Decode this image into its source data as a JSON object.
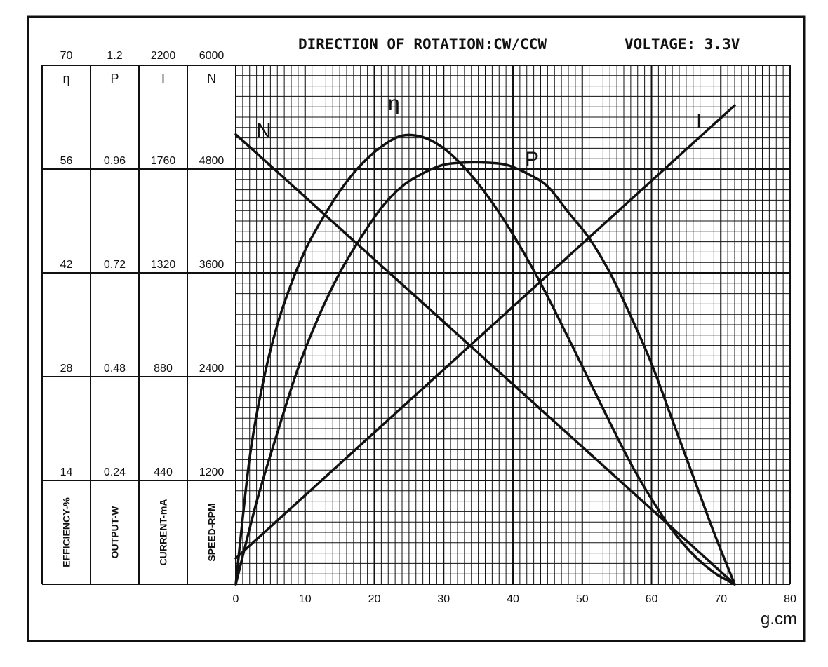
{
  "header": {
    "rotation_text": "DIRECTION OF ROTATION:CW/CCW",
    "voltage_text": "VOLTAGE: 3.3V"
  },
  "chart_data": {
    "type": "line",
    "x_unit": "g.cm",
    "xlim": [
      0,
      80
    ],
    "x_ticks": [
      "0",
      "10",
      "20",
      "30",
      "40",
      "50",
      "60",
      "70",
      "80"
    ],
    "x_tick_values": [
      0,
      10,
      20,
      30,
      40,
      50,
      60,
      70,
      80
    ],
    "axes": [
      {
        "symbol": "η",
        "name": "EFFICIENCY-%",
        "max": 70,
        "ticks": [
          "70",
          "56",
          "42",
          "28",
          "14"
        ]
      },
      {
        "symbol": "P",
        "name": "OUTPUT-W",
        "max": 1.2,
        "ticks": [
          "1.2",
          "0.96",
          "0.72",
          "0.48",
          "0.24"
        ]
      },
      {
        "symbol": "I",
        "name": "CURRENT-mA",
        "max": 2200,
        "ticks": [
          "2200",
          "1760",
          "1320",
          "880",
          "440"
        ]
      },
      {
        "symbol": "N",
        "name": "SPEED-RPM",
        "max": 6000,
        "ticks": [
          "6000",
          "4800",
          "3600",
          "2400",
          "1200"
        ]
      }
    ],
    "series": [
      {
        "name": "N",
        "axis": 3,
        "x": [
          0,
          72
        ],
        "y": [
          5200,
          0
        ]
      },
      {
        "name": "I",
        "axis": 2,
        "x": [
          0,
          72
        ],
        "y": [
          110,
          2030
        ]
      },
      {
        "name": "η",
        "axis": 0,
        "x": [
          0,
          2,
          4,
          6,
          8,
          10,
          12,
          15,
          18,
          21,
          24,
          27,
          30,
          33,
          36,
          39,
          42,
          45,
          48,
          51,
          54,
          57,
          60,
          63,
          66,
          69,
          71,
          72
        ],
        "y": [
          0,
          17,
          27.5,
          35,
          40.5,
          45,
          48.5,
          53,
          56.5,
          59,
          60.5,
          60.3,
          58.8,
          56.2,
          52.8,
          48.7,
          44,
          38.8,
          33.2,
          27.5,
          21.8,
          16.3,
          11.5,
          7.3,
          4,
          1.6,
          0.5,
          0
        ]
      },
      {
        "name": "P",
        "axis": 1,
        "x": [
          0,
          3,
          6,
          9,
          12,
          15,
          18,
          21,
          24,
          27,
          30,
          33,
          36,
          39,
          42,
          45,
          48,
          51,
          54,
          57,
          60,
          63,
          66,
          69,
          72
        ],
        "y": [
          0,
          0.19,
          0.35,
          0.5,
          0.62,
          0.72,
          0.8,
          0.87,
          0.92,
          0.95,
          0.97,
          0.975,
          0.975,
          0.97,
          0.95,
          0.92,
          0.86,
          0.8,
          0.72,
          0.62,
          0.51,
          0.38,
          0.25,
          0.12,
          0
        ]
      }
    ],
    "grid": true
  }
}
